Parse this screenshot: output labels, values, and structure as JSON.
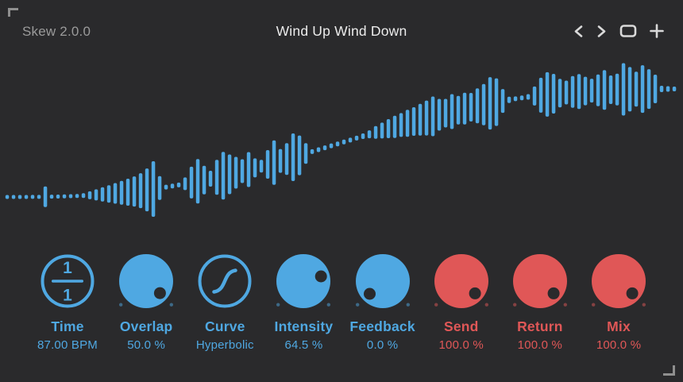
{
  "header": {
    "version": "Skew 2.0.0",
    "preset_title": "Wind Up Wind Down",
    "nav_icons": [
      "chevron-left",
      "chevron-right",
      "rounded-square",
      "plus"
    ]
  },
  "colors": {
    "background": "#2a2a2c",
    "blue": "#4FA8E2",
    "red": "#E05757",
    "title_text": "#ebebeb",
    "secondary_text": "#9b9b9b",
    "icon": "#d9d9d9",
    "corner_bracket": "#8f8f8f"
  },
  "waveform": {
    "color": "#4FA8E2",
    "description": "audio waveform skewed upward left-to-right",
    "amplitudes": [
      2.5,
      2.5,
      2.5,
      2.5,
      2.5,
      2.5,
      13,
      2.5,
      2.5,
      2.5,
      2.5,
      2.5,
      3,
      5,
      7,
      9,
      11,
      13,
      15,
      17,
      19,
      22,
      27,
      35,
      15,
      3,
      3,
      3,
      8,
      20,
      28,
      18,
      10,
      22,
      30,
      25,
      20,
      15,
      22,
      12,
      8,
      18,
      28,
      15,
      20,
      30,
      25,
      13,
      3,
      3,
      3,
      3,
      3,
      3,
      3,
      3,
      3.5,
      5,
      8,
      10,
      12,
      14,
      15,
      17,
      18,
      20,
      22,
      25,
      20,
      18,
      22,
      18,
      20,
      18,
      22,
      26,
      33,
      30,
      15,
      4,
      3,
      3,
      3.5,
      12,
      22,
      28,
      25,
      18,
      15,
      20,
      22,
      18,
      15,
      20,
      25,
      18,
      20,
      33,
      28,
      22,
      30,
      25,
      18,
      4,
      3.5,
      3
    ]
  },
  "knobs": [
    {
      "id": "time",
      "type": "fraction",
      "label": "Time",
      "value": "87.00 BPM",
      "color": "blue",
      "numerator": "1",
      "denominator": "1"
    },
    {
      "id": "overlap",
      "type": "filled",
      "label": "Overlap",
      "value": "50.0 %",
      "color": "blue",
      "indicator_angle": 131
    },
    {
      "id": "curve",
      "type": "curve",
      "label": "Curve",
      "value": "Hyperbolic",
      "color": "blue",
      "icon": "s-curve-icon"
    },
    {
      "id": "intensity",
      "type": "filled",
      "label": "Intensity",
      "value": "64.5 %",
      "color": "blue",
      "indicator_angle": 75
    },
    {
      "id": "feedback",
      "type": "filled",
      "label": "Feedback",
      "value": "0.0 %",
      "color": "blue",
      "indicator_angle": -134
    },
    {
      "id": "send",
      "type": "filled",
      "label": "Send",
      "value": "100.0 %",
      "color": "red",
      "indicator_angle": 132
    },
    {
      "id": "return",
      "type": "filled",
      "label": "Return",
      "value": "100.0 %",
      "color": "red",
      "indicator_angle": 132
    },
    {
      "id": "mix",
      "type": "filled",
      "label": "Mix",
      "value": "100.0 %",
      "color": "red",
      "indicator_angle": 132
    }
  ]
}
